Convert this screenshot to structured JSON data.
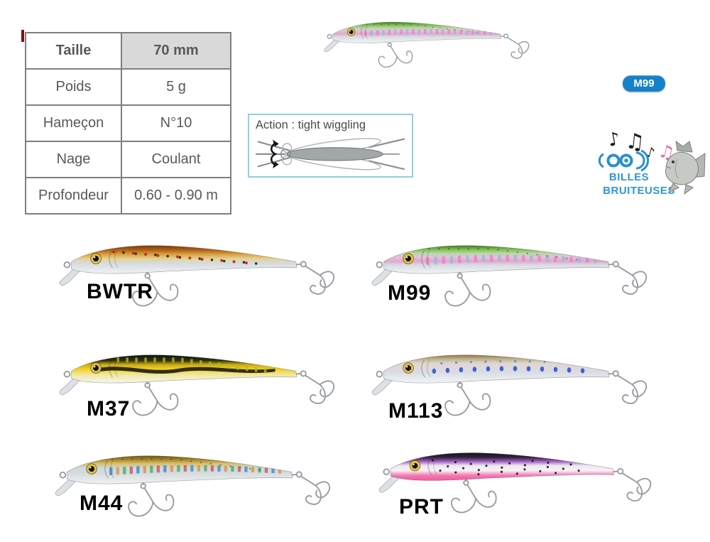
{
  "spec_table": {
    "rows": [
      {
        "label": "Taille",
        "value": "70 mm"
      },
      {
        "label": "Poids",
        "value": "5 g"
      },
      {
        "label": "Hameçon",
        "value": "N°10"
      },
      {
        "label": "Nage",
        "value": "Coulant"
      },
      {
        "label": "Profondeur",
        "value": "0.60 - 0.90 m"
      }
    ]
  },
  "hero": {
    "badge_label": "M99"
  },
  "action_box": {
    "title": "Action : tight wiggling"
  },
  "logo": {
    "line1": "BILLES",
    "line2": "BRUITEUSES"
  },
  "icons": {
    "note": "♪",
    "beamed_note": "♫"
  },
  "variants": [
    {
      "code": "BWTR",
      "palette": {
        "pattern": "dots",
        "pattern_colors": [
          "#c42020",
          "#1c1c1c"
        ],
        "eye": "#e0c24a",
        "gradient": [
          [
            0,
            "#7a3c0c"
          ],
          [
            0.14,
            "#a85a14"
          ],
          [
            0.3,
            "#d89c3c"
          ],
          [
            0.48,
            "#e6d494"
          ],
          [
            0.62,
            "#d4dade"
          ],
          [
            1,
            "#f0f2f4"
          ]
        ]
      }
    },
    {
      "code": "M99",
      "palette": {
        "pattern": "ticks",
        "pattern_colors": [
          "#e07cc0",
          "#8ab8e0"
        ],
        "eye": "#e0c24a",
        "gradient": [
          [
            0,
            "#3a7a28"
          ],
          [
            0.12,
            "#78b848"
          ],
          [
            0.28,
            "#b8d8a8"
          ],
          [
            0.42,
            "#e8c0dc"
          ],
          [
            0.56,
            "#e0a8cc"
          ],
          [
            0.7,
            "#d8dde2"
          ],
          [
            1,
            "#f2f4f6"
          ]
        ]
      }
    },
    {
      "code": "M37",
      "palette": {
        "pattern": "stripe",
        "pattern_colors": [
          "#16160e",
          "#a8c020"
        ],
        "eye": "#e0c24a",
        "gradient": [
          [
            0,
            "#141414"
          ],
          [
            0.2,
            "#30300f"
          ],
          [
            0.34,
            "#c8a818"
          ],
          [
            0.5,
            "#f0d020"
          ],
          [
            0.72,
            "#f0e8a8"
          ],
          [
            1,
            "#f6f6ea"
          ]
        ]
      }
    },
    {
      "code": "M113",
      "palette": {
        "pattern": "dots-blue",
        "pattern_colors": [
          "#2858c8",
          "#4086d8"
        ],
        "eye": "#e0c24a",
        "gradient": [
          [
            0,
            "#8a7848"
          ],
          [
            0.14,
            "#c0b088"
          ],
          [
            0.3,
            "#dcd8d0"
          ],
          [
            0.46,
            "#e2d6de"
          ],
          [
            0.62,
            "#d8dce4"
          ],
          [
            1,
            "#f2f4f6"
          ]
        ]
      }
    },
    {
      "code": "M44",
      "palette": {
        "pattern": "rainbow",
        "pattern_colors": [
          "#2878c8",
          "#e08818",
          "#38a048",
          "#c84040"
        ],
        "eye": "#e0c24a",
        "gradient": [
          [
            0,
            "#6a5414"
          ],
          [
            0.14,
            "#a8862c"
          ],
          [
            0.28,
            "#d8c06c"
          ],
          [
            0.44,
            "#cdd9e0"
          ],
          [
            0.6,
            "#d4dade"
          ],
          [
            1,
            "#f0f2f4"
          ]
        ]
      }
    },
    {
      "code": "PRT",
      "palette": {
        "pattern": "dots-black",
        "pattern_colors": [
          "#161616"
        ],
        "eye": "#e8c838",
        "gradient": [
          [
            0,
            "#161616"
          ],
          [
            0.16,
            "#33203a"
          ],
          [
            0.3,
            "#9a59bd"
          ],
          [
            0.46,
            "#eee7f0"
          ],
          [
            0.64,
            "#f6f2f6"
          ],
          [
            0.82,
            "#f478b2"
          ],
          [
            1,
            "#f25a9e"
          ]
        ]
      }
    }
  ],
  "colors": {
    "page_bg": "#ffffff",
    "badge_bg": "#1581c8",
    "badge_text": "#ffffff",
    "table_border": "#7f7f7f",
    "table_text": "#595959",
    "table_header_bg": "#d9d9d9",
    "action_border": "#90d0e0",
    "action_text": "#4a4a4a",
    "logo_blue": "#2f96d4",
    "label_text": "#000000"
  }
}
